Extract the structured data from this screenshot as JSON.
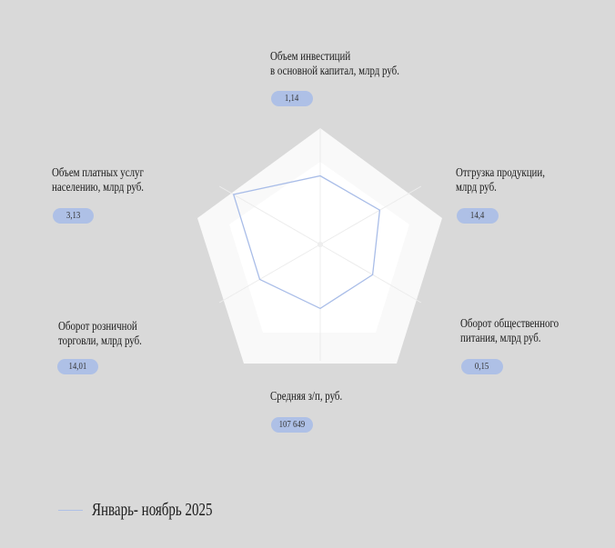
{
  "chart_data": {
    "type": "radar",
    "axes": [
      {
        "label": [
          "Объем инвестиций",
          "в основной капитал, млрд руб."
        ],
        "value": "1,14",
        "normalized": 0.59
      },
      {
        "label": [
          "Отгрузка продукции,",
          "млрд руб."
        ],
        "value": "14,4",
        "normalized": 0.59
      },
      {
        "label": [
          "Оборот общественного",
          "питания, млрд руб."
        ],
        "value": "0,15",
        "normalized": 0.52
      },
      {
        "label": [
          "Средняя з/п, руб."
        ],
        "value": "107 649",
        "normalized": 0.55
      },
      {
        "label": [
          "Оборот розничной",
          "торговли, млрд руб."
        ],
        "value": "14,01",
        "normalized": 0.6
      },
      {
        "label": [
          "Объем платных услуг",
          "населению, млрд руб."
        ],
        "value": "3,13",
        "normalized": 0.86
      }
    ],
    "series": [
      {
        "name": "Январь- ноябрь 2025",
        "color": "#aec0e6"
      }
    ],
    "legend": "bottom-left"
  }
}
